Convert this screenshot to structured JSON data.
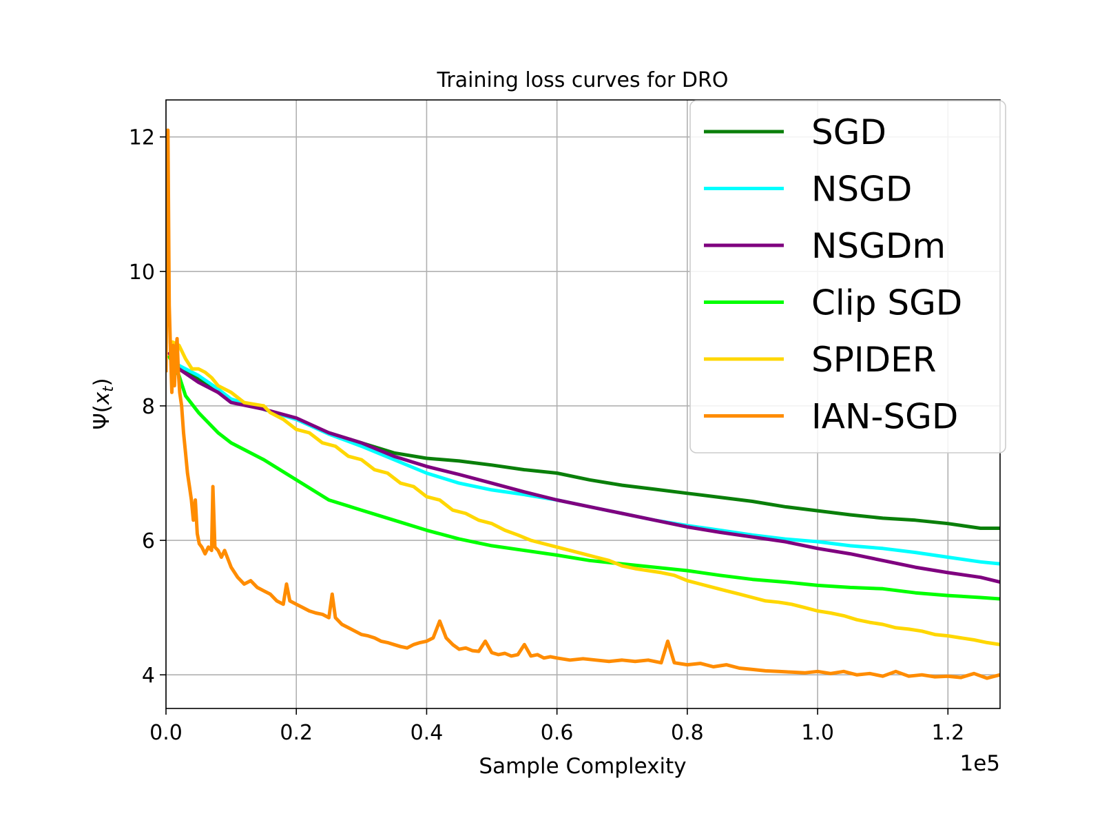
{
  "chart_data": {
    "type": "line",
    "title": "Training loss curves for DRO",
    "xlabel": "Sample Complexity",
    "ylabel_symbol": "Ψ",
    "ylabel_open": "(",
    "ylabel_var": "x",
    "ylabel_sub": "t",
    "ylabel_close": ")",
    "x_offset_label": "1e5",
    "xlim": [
      0,
      1.28
    ],
    "ylim": [
      3.5,
      12.55
    ],
    "grid": true,
    "legend_position": "top-right",
    "x_ticks": [
      {
        "value": 0.0,
        "label": "0.0"
      },
      {
        "value": 0.2,
        "label": "0.2"
      },
      {
        "value": 0.4,
        "label": "0.4"
      },
      {
        "value": 0.6,
        "label": "0.6"
      },
      {
        "value": 0.8,
        "label": "0.8"
      },
      {
        "value": 1.0,
        "label": "1.0"
      },
      {
        "value": 1.2,
        "label": "1.2"
      }
    ],
    "y_ticks": [
      {
        "value": 4,
        "label": "4"
      },
      {
        "value": 6,
        "label": "6"
      },
      {
        "value": 8,
        "label": "8"
      },
      {
        "value": 10,
        "label": "10"
      },
      {
        "value": 12,
        "label": "12"
      }
    ],
    "series": [
      {
        "name": "SGD",
        "color": "#0a7f0a",
        "x": [
          0.004,
          0.02,
          0.05,
          0.08,
          0.1,
          0.15,
          0.2,
          0.25,
          0.3,
          0.35,
          0.4,
          0.45,
          0.5,
          0.55,
          0.6,
          0.65,
          0.7,
          0.75,
          0.8,
          0.85,
          0.9,
          0.95,
          1.0,
          1.05,
          1.1,
          1.15,
          1.2,
          1.25,
          1.28
        ],
        "y": [
          8.75,
          8.6,
          8.4,
          8.2,
          8.1,
          7.95,
          7.8,
          7.6,
          7.45,
          7.3,
          7.22,
          7.18,
          7.12,
          7.05,
          7.0,
          6.9,
          6.82,
          6.76,
          6.7,
          6.64,
          6.58,
          6.5,
          6.44,
          6.38,
          6.33,
          6.3,
          6.25,
          6.18,
          6.18
        ]
      },
      {
        "name": "NSGD",
        "color": "#00ffff",
        "x": [
          0.004,
          0.02,
          0.05,
          0.08,
          0.1,
          0.15,
          0.2,
          0.25,
          0.3,
          0.35,
          0.4,
          0.45,
          0.5,
          0.55,
          0.6,
          0.65,
          0.7,
          0.75,
          0.8,
          0.85,
          0.9,
          0.95,
          1.0,
          1.05,
          1.1,
          1.15,
          1.2,
          1.25,
          1.28
        ],
        "y": [
          8.8,
          8.6,
          8.45,
          8.25,
          8.1,
          7.95,
          7.8,
          7.58,
          7.4,
          7.2,
          7.0,
          6.85,
          6.75,
          6.68,
          6.6,
          6.5,
          6.4,
          6.3,
          6.22,
          6.15,
          6.08,
          6.02,
          5.98,
          5.92,
          5.88,
          5.82,
          5.75,
          5.68,
          5.65
        ]
      },
      {
        "name": "NSGDm",
        "color": "#7f007f",
        "x": [
          0.004,
          0.02,
          0.05,
          0.08,
          0.1,
          0.15,
          0.2,
          0.25,
          0.3,
          0.35,
          0.4,
          0.45,
          0.5,
          0.55,
          0.6,
          0.65,
          0.7,
          0.75,
          0.8,
          0.85,
          0.9,
          0.95,
          1.0,
          1.05,
          1.1,
          1.15,
          1.2,
          1.25,
          1.28
        ],
        "y": [
          8.8,
          8.55,
          8.35,
          8.2,
          8.05,
          7.95,
          7.82,
          7.6,
          7.45,
          7.25,
          7.1,
          6.98,
          6.85,
          6.72,
          6.6,
          6.5,
          6.4,
          6.3,
          6.2,
          6.12,
          6.05,
          5.98,
          5.88,
          5.8,
          5.7,
          5.6,
          5.52,
          5.45,
          5.38
        ]
      },
      {
        "name": "Clip SGD",
        "color": "#00ff00",
        "x": [
          0.004,
          0.02,
          0.03,
          0.05,
          0.08,
          0.1,
          0.15,
          0.2,
          0.25,
          0.3,
          0.35,
          0.4,
          0.45,
          0.5,
          0.55,
          0.6,
          0.65,
          0.7,
          0.75,
          0.8,
          0.85,
          0.9,
          0.95,
          1.0,
          1.05,
          1.1,
          1.15,
          1.2,
          1.25,
          1.28
        ],
        "y": [
          8.75,
          8.45,
          8.15,
          7.9,
          7.6,
          7.45,
          7.2,
          6.9,
          6.6,
          6.45,
          6.3,
          6.15,
          6.02,
          5.92,
          5.85,
          5.78,
          5.7,
          5.65,
          5.6,
          5.55,
          5.48,
          5.42,
          5.38,
          5.33,
          5.3,
          5.28,
          5.22,
          5.18,
          5.15,
          5.13
        ]
      },
      {
        "name": "SPIDER",
        "color": "#ffd700",
        "x": [
          0.004,
          0.01,
          0.02,
          0.03,
          0.04,
          0.05,
          0.06,
          0.07,
          0.08,
          0.1,
          0.12,
          0.15,
          0.16,
          0.18,
          0.2,
          0.22,
          0.24,
          0.26,
          0.28,
          0.3,
          0.32,
          0.34,
          0.36,
          0.38,
          0.4,
          0.42,
          0.44,
          0.46,
          0.48,
          0.5,
          0.52,
          0.54,
          0.56,
          0.58,
          0.6,
          0.62,
          0.64,
          0.66,
          0.68,
          0.7,
          0.72,
          0.74,
          0.76,
          0.78,
          0.8,
          0.82,
          0.84,
          0.86,
          0.88,
          0.9,
          0.92,
          0.94,
          0.96,
          0.98,
          1.0,
          1.02,
          1.04,
          1.06,
          1.08,
          1.1,
          1.12,
          1.14,
          1.16,
          1.18,
          1.2,
          1.22,
          1.24,
          1.26,
          1.28
        ],
        "y": [
          8.95,
          8.95,
          8.9,
          8.7,
          8.55,
          8.55,
          8.5,
          8.42,
          8.3,
          8.2,
          8.05,
          8.0,
          7.9,
          7.8,
          7.65,
          7.6,
          7.45,
          7.4,
          7.25,
          7.2,
          7.05,
          7.0,
          6.85,
          6.8,
          6.65,
          6.6,
          6.45,
          6.4,
          6.3,
          6.25,
          6.15,
          6.08,
          6.0,
          5.95,
          5.9,
          5.85,
          5.8,
          5.75,
          5.7,
          5.62,
          5.58,
          5.55,
          5.52,
          5.48,
          5.4,
          5.35,
          5.3,
          5.25,
          5.2,
          5.15,
          5.1,
          5.08,
          5.05,
          5.0,
          4.95,
          4.92,
          4.88,
          4.82,
          4.78,
          4.75,
          4.7,
          4.68,
          4.65,
          4.6,
          4.58,
          4.55,
          4.52,
          4.48,
          4.45
        ]
      },
      {
        "name": "IAN-SGD",
        "color": "#ff8c00",
        "x": [
          0.0,
          0.003,
          0.005,
          0.007,
          0.009,
          0.011,
          0.013,
          0.015,
          0.017,
          0.019,
          0.021,
          0.024,
          0.027,
          0.03,
          0.033,
          0.036,
          0.039,
          0.042,
          0.045,
          0.048,
          0.051,
          0.055,
          0.06,
          0.065,
          0.07,
          0.072,
          0.075,
          0.08,
          0.085,
          0.09,
          0.1,
          0.11,
          0.12,
          0.13,
          0.14,
          0.15,
          0.16,
          0.17,
          0.18,
          0.185,
          0.19,
          0.2,
          0.21,
          0.22,
          0.23,
          0.24,
          0.25,
          0.255,
          0.26,
          0.27,
          0.28,
          0.29,
          0.3,
          0.31,
          0.32,
          0.33,
          0.34,
          0.35,
          0.36,
          0.37,
          0.38,
          0.39,
          0.4,
          0.41,
          0.42,
          0.43,
          0.44,
          0.45,
          0.46,
          0.47,
          0.48,
          0.49,
          0.5,
          0.51,
          0.52,
          0.53,
          0.54,
          0.55,
          0.56,
          0.57,
          0.58,
          0.59,
          0.6,
          0.62,
          0.64,
          0.66,
          0.68,
          0.7,
          0.72,
          0.74,
          0.76,
          0.77,
          0.78,
          0.8,
          0.82,
          0.84,
          0.86,
          0.88,
          0.9,
          0.92,
          0.94,
          0.96,
          0.98,
          1.0,
          1.02,
          1.04,
          1.06,
          1.08,
          1.1,
          1.12,
          1.14,
          1.16,
          1.18,
          1.2,
          1.22,
          1.24,
          1.26,
          1.28
        ],
        "y": [
          8.5,
          12.1,
          9.5,
          8.8,
          8.2,
          8.9,
          8.3,
          8.8,
          9.0,
          8.5,
          8.2,
          8.0,
          7.6,
          7.3,
          7.0,
          6.8,
          6.6,
          6.3,
          6.6,
          6.1,
          5.95,
          5.9,
          5.8,
          5.9,
          5.85,
          6.8,
          5.9,
          5.85,
          5.75,
          5.85,
          5.6,
          5.45,
          5.35,
          5.4,
          5.3,
          5.25,
          5.2,
          5.1,
          5.05,
          5.35,
          5.1,
          5.05,
          5.0,
          4.95,
          4.92,
          4.9,
          4.85,
          5.2,
          4.85,
          4.75,
          4.7,
          4.65,
          4.6,
          4.58,
          4.55,
          4.5,
          4.48,
          4.45,
          4.42,
          4.4,
          4.45,
          4.48,
          4.5,
          4.55,
          4.8,
          4.55,
          4.45,
          4.38,
          4.4,
          4.36,
          4.35,
          4.5,
          4.33,
          4.3,
          4.32,
          4.28,
          4.3,
          4.45,
          4.28,
          4.3,
          4.25,
          4.27,
          4.25,
          4.22,
          4.24,
          4.22,
          4.2,
          4.22,
          4.2,
          4.22,
          4.18,
          4.5,
          4.18,
          4.15,
          4.17,
          4.12,
          4.15,
          4.1,
          4.08,
          4.06,
          4.05,
          4.04,
          4.03,
          4.05,
          4.02,
          4.05,
          4.0,
          4.02,
          3.98,
          4.05,
          3.98,
          4.0,
          3.97,
          3.98,
          3.96,
          4.02,
          3.95,
          4.0
        ]
      }
    ]
  }
}
